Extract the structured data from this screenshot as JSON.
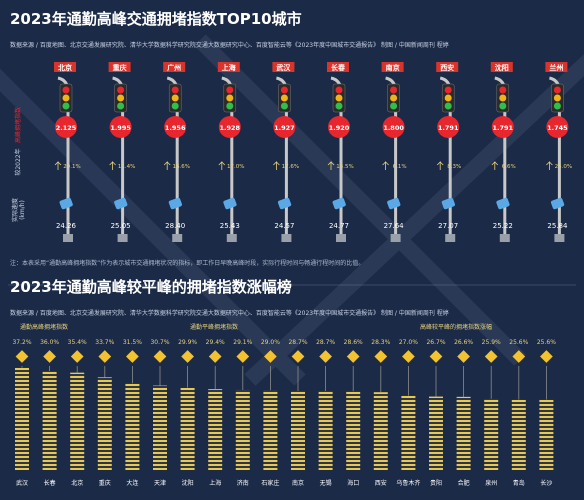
{
  "header1": {
    "title": "2023年通勤高峰交通拥堵指数TOP10城市",
    "source": "数据来源 / 百度地图、北京交通发展研究院、清华大学数据科学研究院交通大数据研究中心、百度智能云等《2023年度中国城市交通报告》    制图 / 中国新闻周刊  程婷"
  },
  "note": "注：本表采用“通勤高峰拥堵指数”作为表示城市交通拥堵状况的指标，即工作日早晚高峰时段，实际行程时间与畅通行程时间的比值。",
  "header2": {
    "title": "2023年通勤高峰较平峰的拥堵指数涨幅榜",
    "source": "数据来源 / 百度地图、北京交通发展研究院、清华大学数据科学研究院交通大数据研究中心、百度智能云等《2023年度中国城市交通报告》    制图 / 中国新闻周刊  程婷"
  },
  "row_labels": {
    "index": "高峰拥堵指数",
    "change": "较2022年",
    "speed_a": "实际速度",
    "speed_b": "(km/h)"
  },
  "legend": {
    "commute": "通勤高峰拥堵指数",
    "offpeak": "通勤平峰拥堵指数",
    "rise": "高峰较平峰的拥堵指数涨幅"
  },
  "colors": {
    "background": "#1b2a47",
    "index_circle": "#e8262d",
    "pole": "#c8c8c8",
    "bar_stripe": "#e9c84a",
    "sign": "#f2c230"
  },
  "chart_data": [
    {
      "type": "table",
      "title": "2023年通勤高峰交通拥堵指数TOP10城市",
      "columns": [
        "城市",
        "高峰拥堵指数",
        "较2022年",
        "实际速度(km/h)"
      ],
      "rows": [
        {
          "city": "北京",
          "index": "2.125",
          "change": "20.1%",
          "speed": "24.26"
        },
        {
          "city": "重庆",
          "index": "1.995",
          "change": "11.4%",
          "speed": "25.05"
        },
        {
          "city": "广州",
          "index": "1.956",
          "change": "16.6%",
          "speed": "28.40"
        },
        {
          "city": "上海",
          "index": "1.928",
          "change": "17.0%",
          "speed": "25.43"
        },
        {
          "city": "武汉",
          "index": "1.927",
          "change": "17.6%",
          "speed": "24.57"
        },
        {
          "city": "长春",
          "index": "1.920",
          "change": "13.5%",
          "speed": "24.77"
        },
        {
          "city": "南京",
          "index": "1.800",
          "change": "6.1%",
          "speed": "27.64"
        },
        {
          "city": "西安",
          "index": "1.791",
          "change": "8.3%",
          "speed": "27.07"
        },
        {
          "city": "沈阳",
          "index": "1.791",
          "change": "6.6%",
          "speed": "25.22"
        },
        {
          "city": "兰州",
          "index": "1.745",
          "change": "25.0%",
          "speed": "25.84"
        }
      ]
    },
    {
      "type": "bar",
      "title": "2023年通勤高峰较平峰的拥堵指数涨幅榜",
      "categories": [
        "武汉",
        "长春",
        "北京",
        "重庆",
        "大连",
        "天津",
        "沈阳",
        "上海",
        "济南",
        "石家庄",
        "南京",
        "无锡",
        "海口",
        "西安",
        "乌鲁木齐",
        "贵阳",
        "合肥",
        "泉州",
        "青岛",
        "长沙"
      ],
      "series": [
        {
          "name": "高峰较平峰的拥堵指数涨幅",
          "values": [
            37.2,
            36.0,
            35.4,
            33.7,
            31.5,
            30.7,
            29.9,
            29.4,
            29.1,
            29.0,
            28.7,
            28.7,
            28.6,
            28.3,
            27.0,
            26.7,
            26.6,
            25.9,
            25.6,
            25.6
          ]
        }
      ],
      "value_labels": [
        "37.2%",
        "36.0%",
        "35.4%",
        "33.7%",
        "31.5%",
        "30.7%",
        "29.9%",
        "29.4%",
        "29.1%",
        "29.0%",
        "28.7%",
        "28.7%",
        "28.6%",
        "28.3%",
        "27.0%",
        "26.7%",
        "26.6%",
        "25.9%",
        "25.6%",
        "25.6%"
      ],
      "ylim": [
        0,
        40
      ]
    }
  ]
}
